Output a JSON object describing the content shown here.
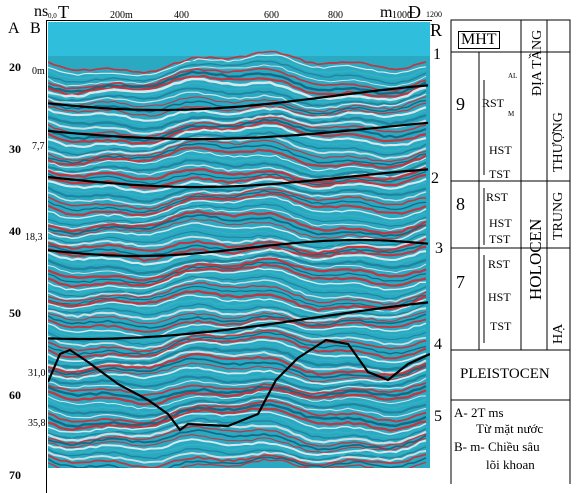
{
  "profile": {
    "axis_header": {
      "a": "A",
      "b": "B",
      "ns": "ns",
      "zero": "0,0",
      "west": "T",
      "east": "Đ",
      "unit_m": "m",
      "r": "R"
    },
    "distance_ticks": [
      "200m",
      "400",
      "600",
      "800",
      "1000",
      "1200"
    ],
    "twt_ticks": [
      "20",
      "30",
      "40",
      "50",
      "60",
      "70"
    ],
    "depth_labels": [
      "0m",
      "7,7",
      "18,3",
      "31,0",
      "35,8"
    ],
    "reflector_labels": [
      "1",
      "2",
      "3",
      "4",
      "5"
    ]
  },
  "stratigraphy": {
    "header_mht": "MHT",
    "header_dia_tang": "ĐỊA TẦNG",
    "sequences": [
      "9",
      "8",
      "7"
    ],
    "system_tracts": {
      "seq9": [
        "AL",
        "RST",
        "M",
        "HST",
        "TST"
      ],
      "seq8": [
        "RST",
        "HST",
        "TST"
      ],
      "seq7": [
        "RST",
        "HST",
        "TST"
      ]
    },
    "epoch": "HOLOCEN",
    "sub_epochs": [
      "THƯỢNG",
      "TRUNG",
      "HẠ"
    ],
    "pleistocene": "PLEISTOCEN"
  },
  "legend": {
    "line1": "A- 2T ms",
    "line2": "Từ mặt nước",
    "line3": "B- m- Chiều sâu",
    "line4": "lõi khoan"
  },
  "colors": {
    "water": "#2fbfdc",
    "teal": "#35b3c4",
    "red": "#d8232a",
    "ink": "#000000"
  }
}
